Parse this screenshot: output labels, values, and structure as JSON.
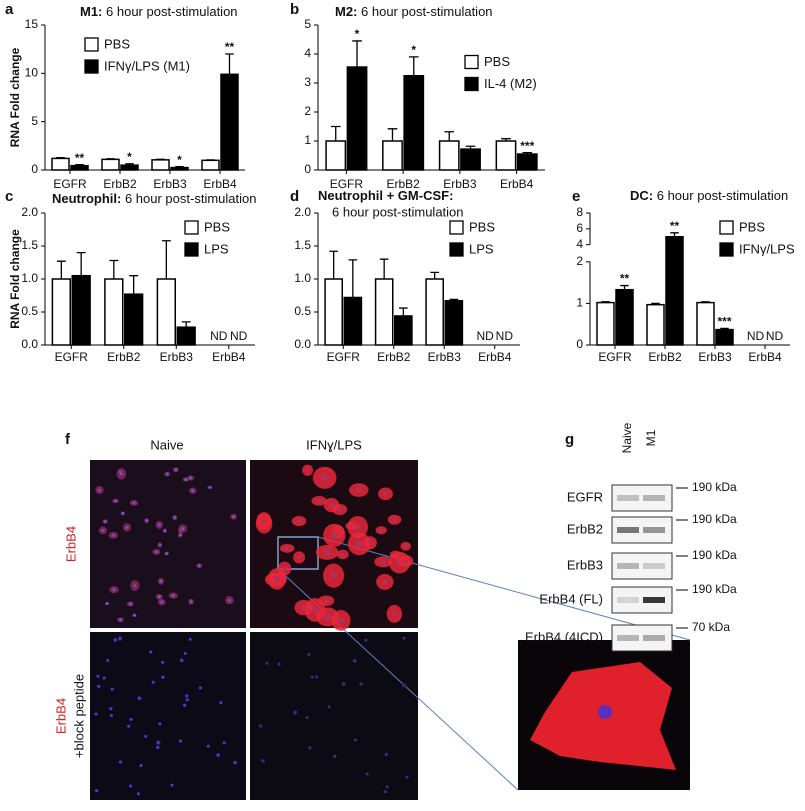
{
  "chart_data": [
    {
      "type": "bar",
      "panel_label": "a",
      "title_lead": "M1:",
      "title": "6 hour post-stimulation",
      "ylabel": "RNA Fold change",
      "categories": [
        "EGFR",
        "ErbB2",
        "ErbB3",
        "ErbB4"
      ],
      "series": [
        {
          "name": "PBS",
          "color": "#ffffff",
          "values": [
            1.2,
            1.1,
            1.05,
            1.0
          ],
          "errors": [
            0.08,
            0.06,
            0.06,
            0.05
          ]
        },
        {
          "name": "IFNγ/LPS (M1)",
          "color": "#000000",
          "values": [
            0.45,
            0.5,
            0.25,
            9.9
          ],
          "errors": [
            0.1,
            0.15,
            0.1,
            2.1
          ],
          "annotations": [
            "**",
            "*",
            "*",
            "**"
          ]
        }
      ],
      "ylim": [
        0,
        15
      ],
      "yticks": [
        0,
        5,
        10,
        15
      ],
      "legend": "upper left"
    },
    {
      "type": "bar",
      "panel_label": "b",
      "title_lead": "M2:",
      "title": "6 hour post-stimulation",
      "categories": [
        "EGFR",
        "ErbB2",
        "ErbB3",
        "ErbB4"
      ],
      "series": [
        {
          "name": "PBS",
          "color": "#ffffff",
          "values": [
            1.0,
            1.0,
            1.0,
            1.0
          ],
          "errors": [
            0.5,
            0.42,
            0.32,
            0.08
          ]
        },
        {
          "name": "IL-4 (M2)",
          "color": "#000000",
          "values": [
            3.55,
            3.25,
            0.72,
            0.55
          ],
          "errors": [
            0.9,
            0.65,
            0.1,
            0.05
          ],
          "annotations": [
            "*",
            "*",
            null,
            "***"
          ]
        }
      ],
      "ylim": [
        0,
        5
      ],
      "yticks": [
        0,
        1,
        2,
        3,
        4,
        5
      ],
      "legend": "center right"
    },
    {
      "type": "bar",
      "panel_label": "c",
      "title_lead": "Neutrophil:",
      "title": "6 hour post-stimulation",
      "ylabel": "RNA Fold change",
      "categories": [
        "EGFR",
        "ErbB2",
        "ErbB3",
        "ErbB4"
      ],
      "series": [
        {
          "name": "PBS",
          "color": "#ffffff",
          "values": [
            1.0,
            1.0,
            1.0,
            null
          ],
          "errors": [
            0.27,
            0.28,
            0.58,
            null
          ],
          "value_labels": [
            null,
            null,
            null,
            "ND"
          ]
        },
        {
          "name": "LPS",
          "color": "#000000",
          "values": [
            1.05,
            0.77,
            0.27,
            null
          ],
          "errors": [
            0.35,
            0.28,
            0.08,
            null
          ],
          "value_labels": [
            null,
            null,
            null,
            "ND"
          ]
        }
      ],
      "ylim": [
        0,
        2
      ],
      "yticks": [
        {
          "value": 0,
          "label": "0.0"
        },
        0.5,
        {
          "value": 1,
          "label": "1.0"
        },
        1.5,
        {
          "value": 2,
          "label": "2.0"
        }
      ],
      "legend": "upper right"
    },
    {
      "type": "bar",
      "panel_label": "d",
      "title_lead": "Neutrophil + GM-CSF:",
      "title": "6 hour post-stimulation",
      "categories": [
        "EGFR",
        "ErbB2",
        "ErbB3",
        "ErbB4"
      ],
      "series": [
        {
          "name": "PBS",
          "color": "#ffffff",
          "values": [
            1.0,
            1.0,
            1.0,
            null
          ],
          "errors": [
            0.42,
            0.3,
            0.1,
            null
          ],
          "value_labels": [
            null,
            null,
            null,
            "ND"
          ]
        },
        {
          "name": "LPS",
          "color": "#000000",
          "values": [
            0.72,
            0.44,
            0.67,
            null
          ],
          "errors": [
            0.57,
            0.12,
            0.02,
            null
          ],
          "value_labels": [
            null,
            null,
            null,
            "ND"
          ]
        }
      ],
      "ylim": [
        0,
        2
      ],
      "yticks": [
        {
          "value": 0,
          "label": "0.0"
        },
        0.5,
        {
          "value": 1,
          "label": "1.0"
        },
        1.5,
        {
          "value": 2,
          "label": "2.0"
        }
      ],
      "legend": "upper right"
    },
    {
      "type": "bar",
      "panel_label": "e",
      "title_lead": "DC:",
      "title": "6 hour post-stimulation",
      "categories": [
        "EGFR",
        "ErbB2",
        "ErbB3",
        "ErbB4"
      ],
      "series": [
        {
          "name": "PBS",
          "color": "#ffffff",
          "values": [
            1.02,
            0.97,
            1.02,
            null
          ],
          "errors": [
            0.02,
            0.03,
            0.02,
            null
          ],
          "value_labels": [
            null,
            null,
            null,
            "ND"
          ]
        },
        {
          "name": "IFNγ/LPS",
          "color": "#000000",
          "values": [
            1.33,
            5.0,
            0.37,
            null
          ],
          "errors": [
            0.1,
            0.5,
            0.03,
            null
          ],
          "value_labels": [
            null,
            null,
            null,
            "ND"
          ],
          "annotations": [
            "**",
            "**",
            "***",
            null
          ]
        }
      ],
      "ylim": [
        0,
        8
      ],
      "ybreak": [
        2,
        4
      ],
      "yticks": [
        0,
        1,
        2,
        4,
        6,
        8
      ],
      "legend": "upper right"
    }
  ],
  "panel_f": {
    "label": "f",
    "columns": [
      "Naive",
      "IFNɣ/LPS"
    ],
    "rows": [
      {
        "label": "ErbB4"
      },
      {
        "label": "ErbB4",
        "sublabel": "+block peptide"
      }
    ]
  },
  "panel_g": {
    "label": "g",
    "lanes": [
      "Naive",
      "M1"
    ],
    "rows": [
      {
        "name": "EGFR",
        "marker": "190 kDa"
      },
      {
        "name": "ErbB2",
        "marker": "190 kDa"
      },
      {
        "name": "ErbB3",
        "marker": "190 kDa"
      },
      {
        "name": "ErbB4 (FL)",
        "marker": "190 kDa"
      },
      {
        "name": "ErbB4 (4ICD)",
        "marker": "70 kDa"
      }
    ]
  }
}
